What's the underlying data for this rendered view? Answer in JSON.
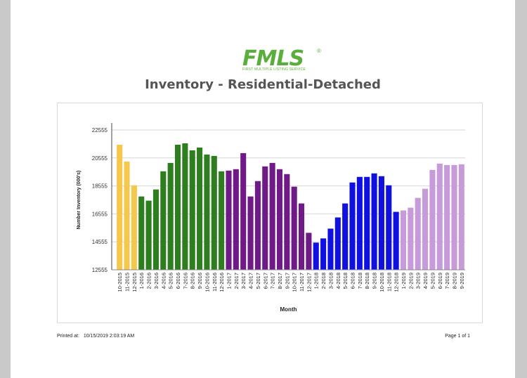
{
  "logo": {
    "word": "FMLS",
    "reg": "®",
    "tagline": "FIRST MULTIPLE LISTING SERVICE"
  },
  "footer": {
    "printed_label": "Printed at:",
    "printed_value": "10/15/2019 2:03:19 AM",
    "page": "Page 1 of 1"
  },
  "colors": {
    "2015": "#f5c84b",
    "2016": "#2e7d1e",
    "2017": "#6f1a86",
    "2018": "#1010e0",
    "2019": "#c79ad9"
  },
  "chart_data": {
    "type": "bar",
    "title": "Inventory - Residential-Detached",
    "xlabel": "Month",
    "ylabel": "Number Inventory (000's)",
    "ylim": [
      12555,
      22555
    ],
    "yticks": [
      "22555",
      "20555",
      "18555",
      "16555",
      "14555",
      "12555"
    ],
    "grid": true,
    "categories": [
      "10-2015",
      "11-2015",
      "12-2015",
      "1-2016",
      "2-2016",
      "3-2016",
      "4-2016",
      "5-2016",
      "6-2016",
      "7-2016",
      "8-2016",
      "9-2016",
      "10-2016",
      "11-2016",
      "12-2016",
      "1-2017",
      "2-2017",
      "3-2017",
      "4-2017",
      "5-2017",
      "6-2017",
      "7-2017",
      "8-2017",
      "9-2017",
      "10-2017",
      "11-2017",
      "12-2017",
      "1-2018",
      "2-2018",
      "3-2018",
      "4-2018",
      "5-2018",
      "6-2018",
      "7-2018",
      "8-2018",
      "9-2018",
      "10-2018",
      "11-2018",
      "12-2018",
      "1-2019",
      "2-2019",
      "3-2019",
      "4-2019",
      "5-2019",
      "6-2019",
      "7-2019",
      "8-2019",
      "9-2019"
    ],
    "values": [
      21500,
      20300,
      18600,
      17800,
      17500,
      18300,
      19600,
      20200,
      21500,
      21600,
      21100,
      21300,
      20800,
      20700,
      19600,
      19650,
      19750,
      20900,
      17800,
      18900,
      19950,
      20200,
      19750,
      19400,
      18500,
      17300,
      15200,
      14500,
      14800,
      15500,
      16300,
      17300,
      18800,
      19200,
      19200,
      19450,
      19250,
      18600,
      16700,
      16800,
      17000,
      17700,
      18350,
      19700,
      20150,
      20050,
      20050,
      20100
    ],
    "series_years": [
      "2015",
      "2015",
      "2015",
      "2016",
      "2016",
      "2016",
      "2016",
      "2016",
      "2016",
      "2016",
      "2016",
      "2016",
      "2016",
      "2016",
      "2016",
      "2017",
      "2017",
      "2017",
      "2017",
      "2017",
      "2017",
      "2017",
      "2017",
      "2017",
      "2017",
      "2017",
      "2017",
      "2018",
      "2018",
      "2018",
      "2018",
      "2018",
      "2018",
      "2018",
      "2018",
      "2018",
      "2018",
      "2018",
      "2018",
      "2019",
      "2019",
      "2019",
      "2019",
      "2019",
      "2019",
      "2019",
      "2019",
      "2019"
    ]
  }
}
